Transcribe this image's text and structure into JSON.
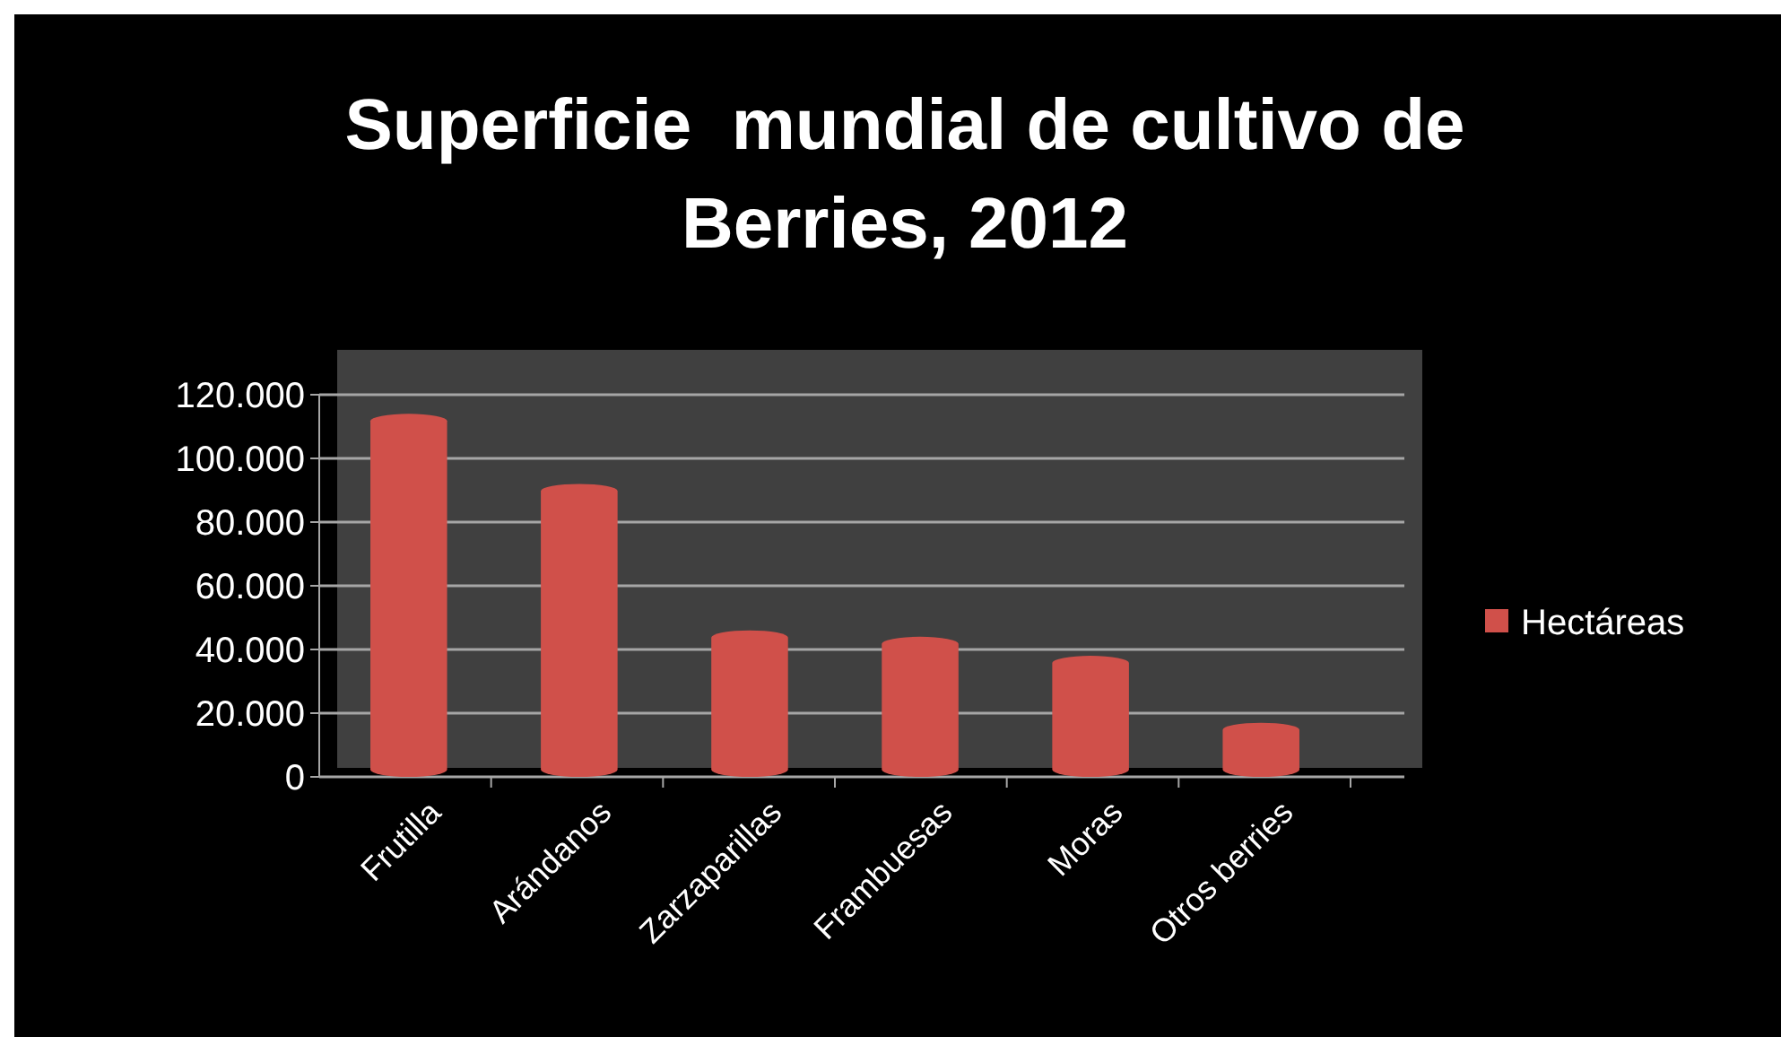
{
  "chart_data": {
    "type": "bar",
    "title": "Superficie  mundial de cultivo de Berries, 2012",
    "categories": [
      "Frutilla",
      "Arándanos",
      "Zarzaparillas",
      "Frambuesas",
      "Moras",
      "Otros berries"
    ],
    "series": [
      {
        "name": "Hectáreas",
        "color": "#d0504a",
        "values": [
          114000,
          92000,
          46000,
          44000,
          38000,
          17000
        ]
      }
    ],
    "ylim": [
      0,
      120000
    ],
    "yticks": [
      0,
      {
        "value": 20000,
        "label": "20.000"
      },
      {
        "value": 40000,
        "label": "40.000"
      },
      {
        "value": 60000,
        "label": "60.000"
      },
      {
        "value": 80000,
        "label": "80.000"
      },
      {
        "value": 100000,
        "label": "100.000"
      },
      {
        "value": 120000,
        "label": "120.000"
      }
    ],
    "grid": "y",
    "legend": "right"
  }
}
